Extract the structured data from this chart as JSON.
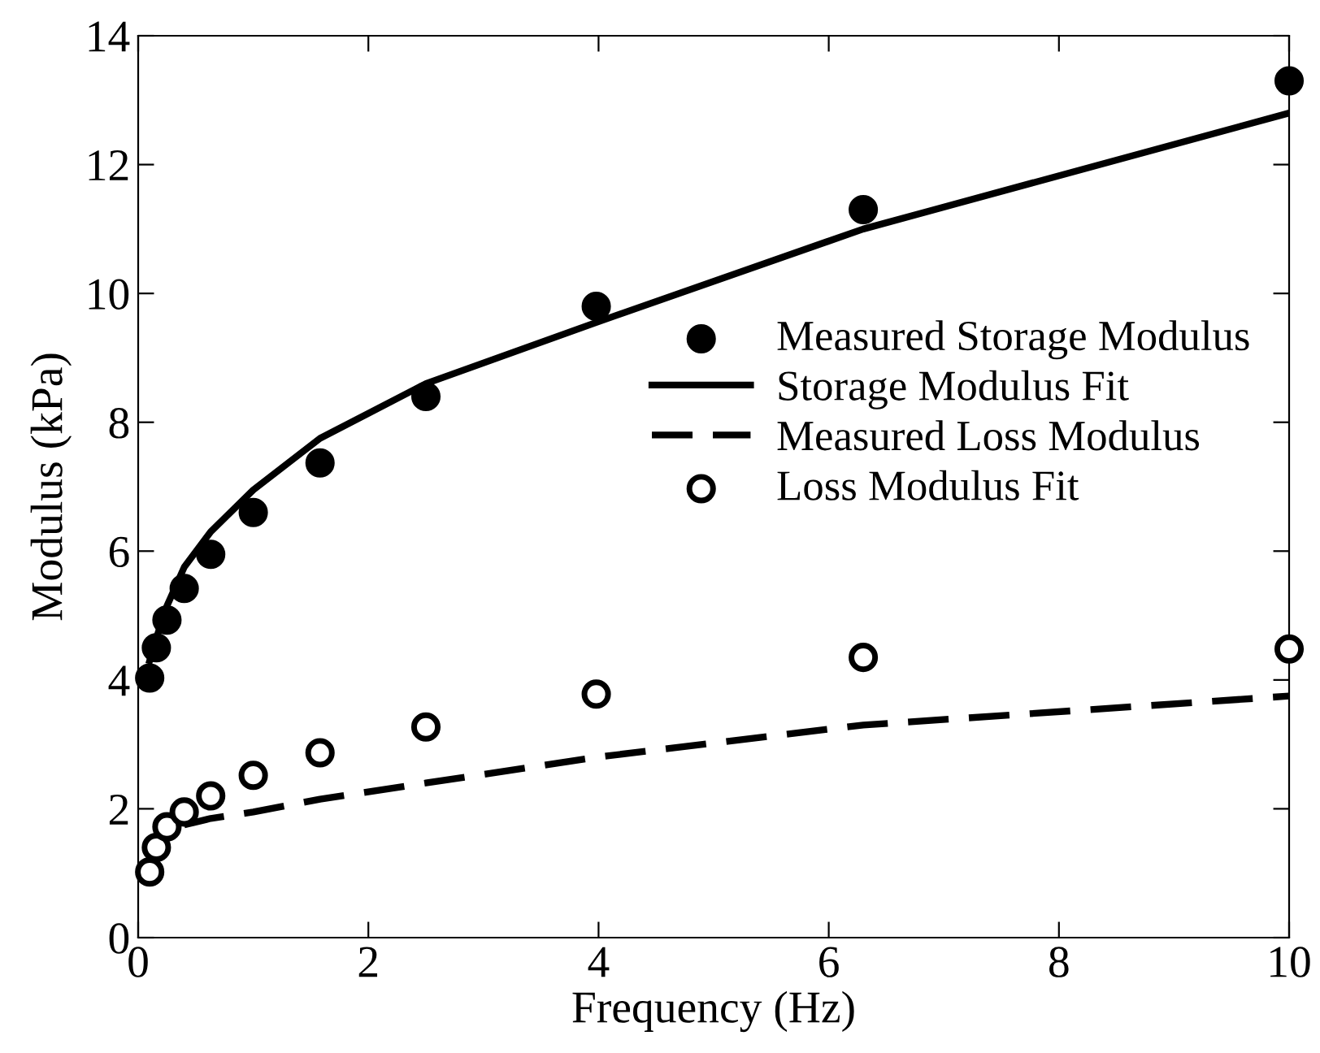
{
  "chart_data": {
    "type": "scatter",
    "xlabel": "Frequency (Hz)",
    "ylabel": "Modulus (kPa)",
    "xlim": [
      0,
      10
    ],
    "ylim": [
      0,
      14
    ],
    "xticks": [
      0,
      2,
      4,
      6,
      8,
      10
    ],
    "yticks": [
      0,
      2,
      4,
      6,
      8,
      10,
      12,
      14
    ],
    "grid": false,
    "legend": "right",
    "series": [
      {
        "name": "Measured Storage Modulus",
        "marker": "circle",
        "color": "#000000",
        "x": [
          0.1,
          0.158,
          0.25,
          0.4,
          0.63,
          1,
          1.58,
          2.5,
          3.98,
          6.3,
          10
        ],
        "values": [
          4.03,
          4.5,
          4.93,
          5.42,
          5.95,
          6.6,
          7.37,
          8.4,
          9.8,
          11.3,
          13.3
        ]
      },
      {
        "name": "Storage Modulus Fit",
        "type": "line",
        "line_style": "solid",
        "color": "#000000",
        "x": [
          0.1,
          0.158,
          0.25,
          0.4,
          0.63,
          1,
          1.58,
          2.5,
          3.98,
          6.3,
          10
        ],
        "values": [
          4.3,
          4.65,
          5.15,
          5.75,
          6.3,
          6.95,
          7.75,
          8.6,
          9.55,
          11.0,
          12.8
        ]
      },
      {
        "name": "Measured Loss Modulus",
        "type": "line",
        "line_style": "dashed",
        "color": "#000000",
        "x": [
          0.4,
          0.63,
          1,
          1.58,
          2.5,
          3.98,
          6.3,
          10
        ],
        "values": [
          1.75,
          1.85,
          1.95,
          2.15,
          2.4,
          2.8,
          3.3,
          3.75
        ]
      },
      {
        "name": "Loss Modulus Fit",
        "marker": "circle",
        "color": "#000000",
        "x": [
          0.1,
          0.158,
          0.25,
          0.4,
          0.63,
          1,
          1.58,
          2.5,
          3.98,
          6.3,
          10
        ],
        "values": [
          1.02,
          1.4,
          1.72,
          1.95,
          2.2,
          2.52,
          2.87,
          3.27,
          3.78,
          4.35,
          4.48
        ]
      }
    ]
  }
}
